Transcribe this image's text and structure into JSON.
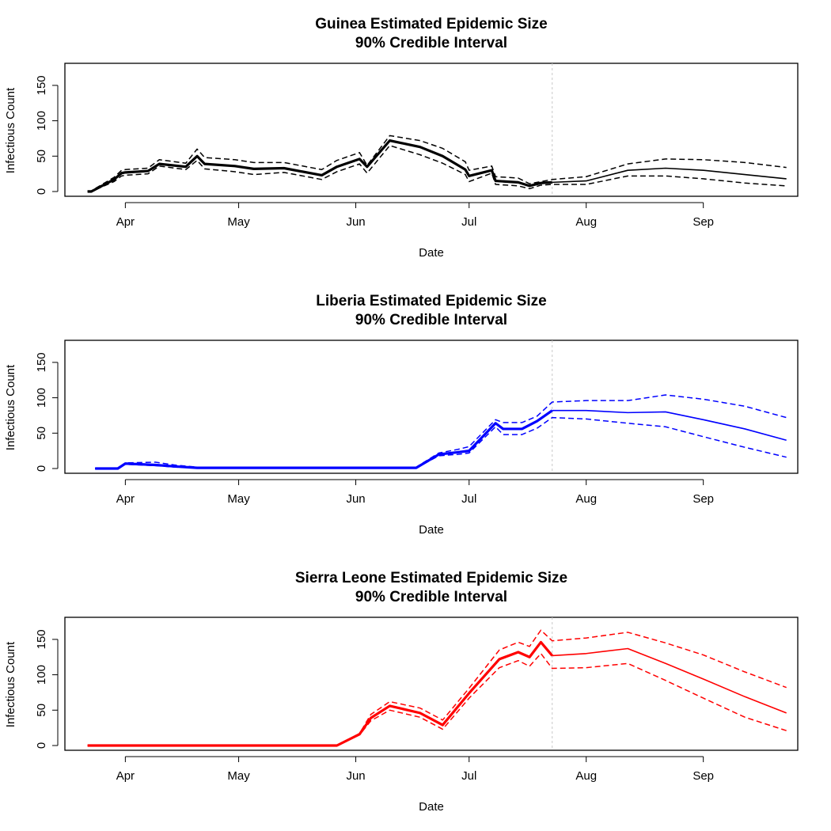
{
  "chart_data": [
    {
      "type": "line",
      "title": "Guinea Estimated Epidemic Size",
      "subtitle": "90% Credible Interval",
      "xlabel": "Date",
      "ylabel": "Infectious Count",
      "color": "#000000",
      "ylim": [
        0,
        170
      ],
      "yticks": [
        0,
        50,
        100,
        150
      ],
      "xlim": [
        "2014-03-16",
        "2014-09-26"
      ],
      "xticks": [
        {
          "date": "2014-04-01",
          "label": "Apr"
        },
        {
          "date": "2014-05-01",
          "label": "May"
        },
        {
          "date": "2014-06-01",
          "label": "Jun"
        },
        {
          "date": "2014-07-01",
          "label": "Jul"
        },
        {
          "date": "2014-08-01",
          "label": "Aug"
        },
        {
          "date": "2014-09-01",
          "label": "Sep"
        }
      ],
      "vline_date": "2014-07-23",
      "observed_end": "2014-07-23",
      "x": [
        "2014-03-22",
        "2014-03-23",
        "2014-03-29",
        "2014-03-31",
        "2014-04-01",
        "2014-04-07",
        "2014-04-10",
        "2014-04-17",
        "2014-04-20",
        "2014-04-22",
        "2014-04-30",
        "2014-05-05",
        "2014-05-13",
        "2014-05-23",
        "2014-05-27",
        "2014-06-02",
        "2014-06-04",
        "2014-06-10",
        "2014-06-18",
        "2014-06-24",
        "2014-06-30",
        "2014-07-01",
        "2014-07-07",
        "2014-07-08",
        "2014-07-14",
        "2014-07-17",
        "2014-07-20",
        "2014-07-23",
        "2014-08-01",
        "2014-08-12",
        "2014-08-22",
        "2014-09-01",
        "2014-09-12",
        "2014-09-23"
      ],
      "series": [
        {
          "name": "median",
          "style": "solid",
          "values": [
            0,
            0,
            17,
            26,
            27,
            29,
            39,
            35,
            50,
            39,
            36,
            32,
            33,
            23,
            35,
            46,
            35,
            72,
            63,
            50,
            31,
            22,
            30,
            15,
            13,
            8,
            12,
            13,
            15,
            30,
            33,
            30,
            24,
            18
          ]
        },
        {
          "name": "upper",
          "style": "dashed",
          "values": [
            1,
            1,
            20,
            30,
            31,
            33,
            45,
            40,
            60,
            48,
            45,
            41,
            41,
            31,
            44,
            55,
            37,
            79,
            72,
            61,
            42,
            30,
            36,
            21,
            19,
            11,
            14,
            17,
            21,
            39,
            46,
            45,
            41,
            34
          ]
        },
        {
          "name": "lower",
          "style": "dashed",
          "values": [
            0,
            0,
            14,
            22,
            23,
            25,
            36,
            31,
            44,
            32,
            28,
            24,
            27,
            17,
            28,
            39,
            26,
            65,
            52,
            40,
            24,
            14,
            26,
            10,
            8,
            4,
            9,
            10,
            10,
            22,
            22,
            18,
            12,
            8
          ]
        }
      ]
    },
    {
      "type": "line",
      "title": "Liberia Estimated Epidemic Size",
      "subtitle": "90% Credible Interval",
      "xlabel": "Date",
      "ylabel": "Infectious Count",
      "color": "#0000ff",
      "ylim": [
        0,
        170
      ],
      "yticks": [
        0,
        50,
        100,
        150
      ],
      "xlim": [
        "2014-03-16",
        "2014-09-26"
      ],
      "xticks": [
        {
          "date": "2014-04-01",
          "label": "Apr"
        },
        {
          "date": "2014-05-01",
          "label": "May"
        },
        {
          "date": "2014-06-01",
          "label": "Jun"
        },
        {
          "date": "2014-07-01",
          "label": "Jul"
        },
        {
          "date": "2014-08-01",
          "label": "Aug"
        },
        {
          "date": "2014-09-01",
          "label": "Sep"
        }
      ],
      "vline_date": "2014-07-23",
      "observed_end": "2014-07-23",
      "x": [
        "2014-03-24",
        "2014-03-30",
        "2014-04-01",
        "2014-04-09",
        "2014-04-14",
        "2014-04-20",
        "2014-05-01",
        "2014-06-01",
        "2014-06-04",
        "2014-06-17",
        "2014-06-23",
        "2014-06-28",
        "2014-07-01",
        "2014-07-08",
        "2014-07-10",
        "2014-07-15",
        "2014-07-19",
        "2014-07-23",
        "2014-08-01",
        "2014-08-12",
        "2014-08-22",
        "2014-09-01",
        "2014-09-12",
        "2014-09-23"
      ],
      "series": [
        {
          "name": "median",
          "style": "solid",
          "values": [
            0,
            0,
            7,
            5,
            3,
            1,
            1,
            1,
            1,
            1,
            20,
            23,
            25,
            64,
            56,
            56,
            67,
            82,
            82,
            79,
            80,
            69,
            56,
            40
          ]
        },
        {
          "name": "upper",
          "style": "dashed",
          "values": [
            0,
            0,
            8,
            9,
            5,
            2,
            2,
            2,
            2,
            2,
            22,
            27,
            31,
            69,
            65,
            65,
            74,
            94,
            96,
            96,
            104,
            98,
            88,
            72
          ]
        },
        {
          "name": "lower",
          "style": "dashed",
          "values": [
            0,
            0,
            6,
            4,
            2,
            1,
            1,
            1,
            1,
            1,
            18,
            20,
            22,
            59,
            48,
            48,
            57,
            72,
            70,
            64,
            59,
            45,
            30,
            16
          ]
        }
      ]
    },
    {
      "type": "line",
      "title": "Sierra Leone Estimated Epidemic Size",
      "subtitle": "90% Credible Interval",
      "xlabel": "Date",
      "ylabel": "Infectious Count",
      "color": "#ff0000",
      "ylim": [
        0,
        170
      ],
      "yticks": [
        0,
        50,
        100,
        150
      ],
      "xlim": [
        "2014-03-16",
        "2014-09-26"
      ],
      "xticks": [
        {
          "date": "2014-04-01",
          "label": "Apr"
        },
        {
          "date": "2014-05-01",
          "label": "May"
        },
        {
          "date": "2014-06-01",
          "label": "Jun"
        },
        {
          "date": "2014-07-01",
          "label": "Jul"
        },
        {
          "date": "2014-08-01",
          "label": "Aug"
        },
        {
          "date": "2014-09-01",
          "label": "Sep"
        }
      ],
      "vline_date": "2014-07-23",
      "observed_end": "2014-07-23",
      "x": [
        "2014-03-22",
        "2014-05-27",
        "2014-06-02",
        "2014-06-05",
        "2014-06-10",
        "2014-06-18",
        "2014-06-24",
        "2014-07-01",
        "2014-07-09",
        "2014-07-14",
        "2014-07-17",
        "2014-07-20",
        "2014-07-23",
        "2014-08-01",
        "2014-08-12",
        "2014-08-22",
        "2014-09-01",
        "2014-09-12",
        "2014-09-23"
      ],
      "series": [
        {
          "name": "median",
          "style": "solid",
          "values": [
            0,
            0,
            16,
            39,
            56,
            46,
            29,
            74,
            122,
            132,
            125,
            146,
            127,
            130,
            137,
            116,
            94,
            69,
            46
          ]
        },
        {
          "name": "upper",
          "style": "dashed",
          "values": [
            0,
            0,
            17,
            44,
            62,
            53,
            36,
            81,
            135,
            146,
            140,
            163,
            148,
            152,
            160,
            145,
            128,
            104,
            82
          ]
        },
        {
          "name": "lower",
          "style": "dashed",
          "values": [
            0,
            0,
            15,
            35,
            50,
            40,
            23,
            67,
            110,
            120,
            112,
            130,
            109,
            110,
            116,
            92,
            67,
            40,
            21
          ]
        }
      ]
    }
  ]
}
